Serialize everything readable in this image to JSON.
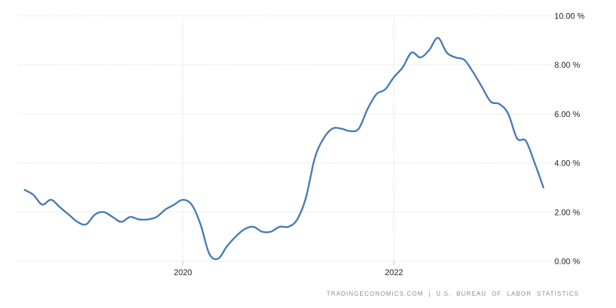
{
  "chart_data": {
    "type": "line",
    "x": [
      "2018-07",
      "2018-08",
      "2018-09",
      "2018-10",
      "2018-11",
      "2018-12",
      "2019-01",
      "2019-02",
      "2019-03",
      "2019-04",
      "2019-05",
      "2019-06",
      "2019-07",
      "2019-08",
      "2019-09",
      "2019-10",
      "2019-11",
      "2019-12",
      "2020-01",
      "2020-02",
      "2020-03",
      "2020-04",
      "2020-05",
      "2020-06",
      "2020-07",
      "2020-08",
      "2020-09",
      "2020-10",
      "2020-11",
      "2020-12",
      "2021-01",
      "2021-02",
      "2021-03",
      "2021-04",
      "2021-05",
      "2021-06",
      "2021-07",
      "2021-08",
      "2021-09",
      "2021-10",
      "2021-11",
      "2021-12",
      "2022-01",
      "2022-02",
      "2022-03",
      "2022-04",
      "2022-05",
      "2022-06",
      "2022-07",
      "2022-08",
      "2022-09",
      "2022-10",
      "2022-11",
      "2022-12",
      "2023-01",
      "2023-02",
      "2023-03",
      "2023-04",
      "2023-05",
      "2023-06"
    ],
    "values": [
      2.9,
      2.7,
      2.3,
      2.5,
      2.2,
      1.9,
      1.6,
      1.5,
      1.9,
      2.0,
      1.8,
      1.6,
      1.8,
      1.7,
      1.7,
      1.8,
      2.1,
      2.3,
      2.5,
      2.3,
      1.5,
      0.3,
      0.1,
      0.6,
      1.0,
      1.3,
      1.4,
      1.2,
      1.2,
      1.4,
      1.4,
      1.7,
      2.6,
      4.2,
      5.0,
      5.4,
      5.4,
      5.3,
      5.4,
      6.2,
      6.8,
      7.0,
      7.5,
      7.9,
      8.5,
      8.3,
      8.6,
      9.1,
      8.5,
      8.3,
      8.2,
      7.7,
      7.1,
      6.5,
      6.4,
      6.0,
      5.0,
      4.9,
      4.0,
      3.0
    ],
    "ylim": [
      0,
      10
    ],
    "y_ticks": [
      0,
      2,
      4,
      6,
      8,
      10
    ],
    "y_tick_labels": [
      "0.00 %",
      "2.00 %",
      "4.00 %",
      "6.00 %",
      "8.00 %",
      "10.00 %"
    ],
    "y_axis_side": "right",
    "x_ticks": [
      "2020-01",
      "2022-01"
    ],
    "x_tick_labels": [
      "2020",
      "2022"
    ],
    "grid": "dotted",
    "legend": "none",
    "line_color": "#4a7cb5",
    "grid_color": "#cccccc",
    "tick_color": "#c3c3c3",
    "tick_label_color": "#1f1f1f",
    "attribution_color": "#8f8f8f"
  },
  "footer": {
    "attribution": "TRADINGECONOMICS.COM | U.S. BUREAU OF LABOR STATISTICS"
  }
}
